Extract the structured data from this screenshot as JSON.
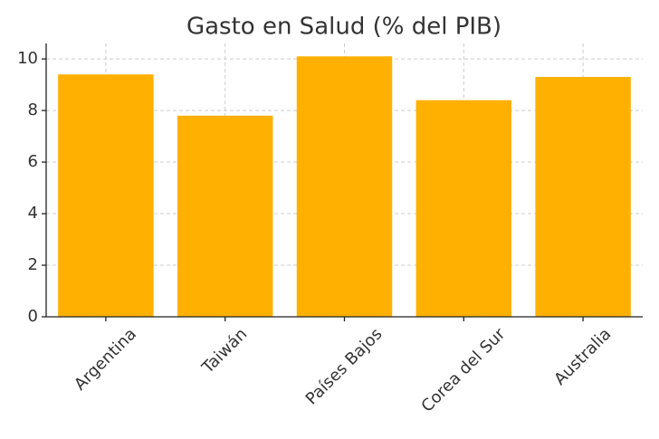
{
  "chart_data": {
    "type": "bar",
    "title": "Gasto en Salud (% del PIB)",
    "categories": [
      "Argentina",
      "Taiwán",
      "Países Bajos",
      "Corea del Sur",
      "Australia"
    ],
    "values": [
      9.4,
      7.8,
      10.1,
      8.4,
      9.3
    ],
    "color": "#ffb000",
    "ylim": [
      0,
      10.6
    ],
    "yticks": [
      0,
      2,
      4,
      6,
      8,
      10
    ],
    "grid": true
  }
}
